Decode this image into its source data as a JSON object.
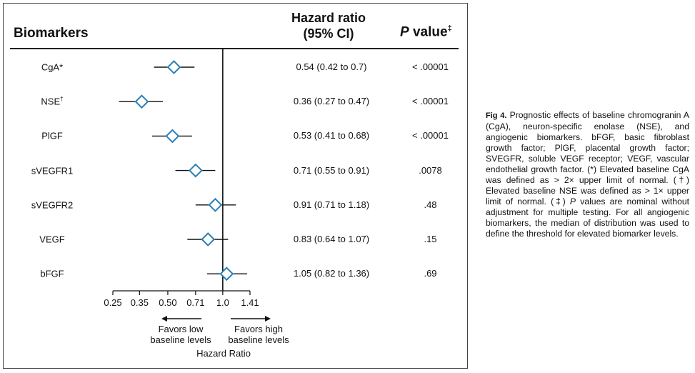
{
  "header": {
    "biomarkers": "Biomarkers",
    "hazard_line1": "Hazard ratio",
    "hazard_line2": "(95% CI)",
    "p_label": "P",
    "p_rest": " value",
    "p_mark": "‡"
  },
  "rows": [
    {
      "name": "CgA*",
      "mark": "",
      "hr_text": "0.54 (0.42 to 0.7)",
      "p": "< .00001"
    },
    {
      "name": "NSE",
      "mark": "†",
      "hr_text": "0.36 (0.27 to 0.47)",
      "p": "< .00001"
    },
    {
      "name": "PlGF",
      "mark": "",
      "hr_text": "0.53 (0.41 to 0.68)",
      "p": "< .00001"
    },
    {
      "name": "sVEGFR1",
      "mark": "",
      "hr_text": "0.71 (0.55 to 0.91)",
      "p": ".0078"
    },
    {
      "name": "sVEGFR2",
      "mark": "",
      "hr_text": "0.91 (0.71 to 1.18)",
      "p": ".48"
    },
    {
      "name": "VEGF",
      "mark": "",
      "hr_text": "0.83 (0.64 to 1.07)",
      "p": ".15"
    },
    {
      "name": "bFGF",
      "mark": "",
      "hr_text": "1.05 (0.82 to 1.36)",
      "p": ".69"
    }
  ],
  "axis": {
    "favors_low_1": "Favors low",
    "favors_low_2": "baseline levels",
    "favors_high_1": "Favors high",
    "favors_high_2": "baseline levels",
    "title": "Hazard Ratio"
  },
  "caption": {
    "fig": "Fig 4.",
    "text1": " Prognostic effects of baseline chromogranin A (CgA), neuron-specific enolase (NSE), and angiogenic biomarkers. bFGF, basic fibroblast growth factor; PlGF, placental growth factor; SVEGFR, soluble VEGF receptor; VEGF, vascular endothelial growth factor. (*) Elevated baseline CgA was defined as > 2× upper limit of normal. (†) Elevated baseline NSE was defined as > 1× upper limit of normal. (‡) ",
    "p_italic": "P",
    "text2": " values are nominal without adjustment for multiple testing. For all angiogenic biomarkers, the median of distribution was used to define the threshold for elevated biomarker levels."
  },
  "colors": {
    "marker": "#2a7fb4",
    "line": "#111111"
  },
  "chart_data": {
    "type": "forest",
    "title": "",
    "xlabel": "Hazard Ratio",
    "x_scale": "log",
    "ticks": [
      0.25,
      0.35,
      0.5,
      0.71,
      1.0,
      1.41
    ],
    "tick_labels": [
      "0.25",
      "0.35",
      "0.50",
      "0.71",
      "1.0",
      "1.41"
    ],
    "xlim": [
      0.25,
      1.41
    ],
    "reference": 1.0,
    "series": [
      {
        "name": "CgA*",
        "hr": 0.54,
        "lo": 0.42,
        "hi": 0.7
      },
      {
        "name": "NSE†",
        "hr": 0.36,
        "lo": 0.27,
        "hi": 0.47
      },
      {
        "name": "PlGF",
        "hr": 0.53,
        "lo": 0.41,
        "hi": 0.68
      },
      {
        "name": "sVEGFR1",
        "hr": 0.71,
        "lo": 0.55,
        "hi": 0.91
      },
      {
        "name": "sVEGFR2",
        "hr": 0.91,
        "lo": 0.71,
        "hi": 1.18
      },
      {
        "name": "VEGF",
        "hr": 0.83,
        "lo": 0.64,
        "hi": 1.07
      },
      {
        "name": "bFGF",
        "hr": 1.05,
        "lo": 0.82,
        "hi": 1.36
      }
    ]
  }
}
